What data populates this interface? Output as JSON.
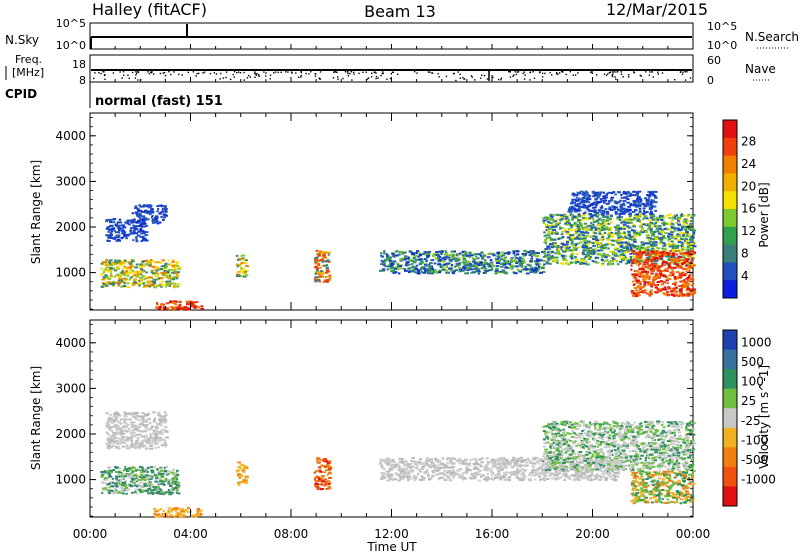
{
  "header": {
    "station": "Halley (fitACF)",
    "beam": "Beam 13",
    "date": "12/Mar/2015"
  },
  "strip1": {
    "left_label": "N.Sky",
    "left_ticks": [
      "10^5",
      "10^0"
    ],
    "right_label": "N.Search",
    "right_ticks": [
      "10^5",
      "10^0"
    ]
  },
  "strip2": {
    "left_label_1": "Freq.",
    "left_label_2": "[MHz]",
    "left_ticks": [
      "18",
      "8"
    ],
    "right_label": "Nave",
    "right_ticks": [
      "60",
      "0"
    ]
  },
  "cpid": {
    "label": "CPID",
    "value": "normal (fast) 151"
  },
  "chart_data": [
    {
      "type": "heatmap",
      "name": "Power",
      "ylabel": "Slant Range [km]",
      "ylim": [
        180,
        4500
      ],
      "yticks": [
        "1000",
        "2000",
        "3000",
        "4000"
      ],
      "xlim": [
        "00:00",
        "24:00"
      ],
      "colorbar": {
        "label": "Power [dB]",
        "ticks": [
          "4",
          "8",
          "12",
          "16",
          "20",
          "24",
          "28"
        ],
        "colors": [
          "#0a1ee0",
          "#2050c0",
          "#3a7f7a",
          "#33a050",
          "#80c830",
          "#f2e000",
          "#f0b000",
          "#f08000",
          "#f04010",
          "#e01010"
        ]
      },
      "echo_regions": [
        {
          "t_start": 0.6,
          "t_end": 2.2,
          "range_start": 1700,
          "range_end": 2200,
          "level": "blue"
        },
        {
          "t_start": 1.6,
          "t_end": 3.0,
          "range_start": 2100,
          "range_end": 2500,
          "level": "blue"
        },
        {
          "t_start": 0.4,
          "t_end": 3.5,
          "range_start": 700,
          "range_end": 1300,
          "level": "green-orange"
        },
        {
          "t_start": 2.5,
          "t_end": 4.4,
          "range_start": 200,
          "range_end": 400,
          "level": "red"
        },
        {
          "t_start": 5.8,
          "t_end": 6.2,
          "range_start": 900,
          "range_end": 1400,
          "level": "green-orange"
        },
        {
          "t_start": 8.9,
          "t_end": 9.5,
          "range_start": 800,
          "range_end": 1500,
          "level": "orange"
        },
        {
          "t_start": 11.5,
          "t_end": 18.0,
          "range_start": 1000,
          "range_end": 1500,
          "level": "blue-green"
        },
        {
          "t_start": 18.0,
          "t_end": 24.0,
          "range_start": 1200,
          "range_end": 2300,
          "level": "green"
        },
        {
          "t_start": 21.5,
          "t_end": 24.0,
          "range_start": 500,
          "range_end": 1500,
          "level": "red"
        },
        {
          "t_start": 19.0,
          "t_end": 22.5,
          "range_start": 2300,
          "range_end": 2800,
          "level": "blue"
        }
      ]
    },
    {
      "type": "heatmap",
      "name": "Velocity",
      "ylabel": "Slant Range [km]",
      "ylim": [
        180,
        4500
      ],
      "yticks": [
        "1000",
        "2000",
        "3000",
        "4000"
      ],
      "xlim": [
        "00:00",
        "24:00"
      ],
      "xticks": [
        "00:00",
        "04:00",
        "08:00",
        "12:00",
        "16:00",
        "20:00",
        "00:00"
      ],
      "xlabel": "Time UT",
      "colorbar": {
        "label": "Velocity [m s^-1]",
        "ticks": [
          "1000",
          "500",
          "100",
          "25",
          "-25",
          "-100",
          "-500",
          "-1000"
        ],
        "colors": [
          "#2040b0",
          "#3a70a0",
          "#2f9060",
          "#70c040",
          "#c8c8c8",
          "#f0b020",
          "#f08010",
          "#f05010",
          "#e01010"
        ]
      },
      "echo_regions": [
        {
          "t_start": 0.6,
          "t_end": 3.0,
          "range_start": 1700,
          "range_end": 2500,
          "level": "grey"
        },
        {
          "t_start": 0.4,
          "t_end": 3.5,
          "range_start": 700,
          "range_end": 1300,
          "level": "green"
        },
        {
          "t_start": 2.5,
          "t_end": 4.4,
          "range_start": 200,
          "range_end": 400,
          "level": "orange"
        },
        {
          "t_start": 5.8,
          "t_end": 6.2,
          "range_start": 900,
          "range_end": 1400,
          "level": "orange"
        },
        {
          "t_start": 8.9,
          "t_end": 9.5,
          "range_start": 800,
          "range_end": 1500,
          "level": "red-orange"
        },
        {
          "t_start": 11.5,
          "t_end": 21.0,
          "range_start": 1000,
          "range_end": 1500,
          "level": "grey"
        },
        {
          "t_start": 18.0,
          "t_end": 24.0,
          "range_start": 1200,
          "range_end": 2300,
          "level": "green-grey"
        },
        {
          "t_start": 21.5,
          "t_end": 24.0,
          "range_start": 500,
          "range_end": 1200,
          "level": "green-orange"
        }
      ]
    }
  ]
}
